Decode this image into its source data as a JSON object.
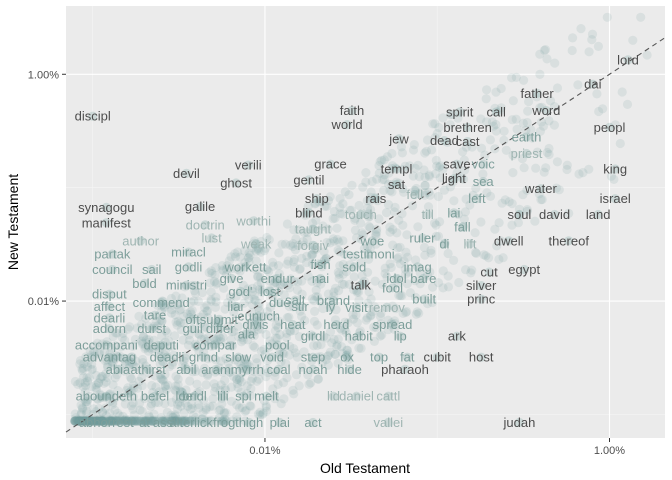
{
  "chart_data": {
    "type": "scatter",
    "title": "",
    "xlabel": "Old Testament",
    "ylabel": "New Testament",
    "x_scale": "log10",
    "y_scale": "log10",
    "x_ticks": [
      {
        "value": 0.01,
        "label": "0.01%"
      },
      {
        "value": 1,
        "label": "1.00%"
      }
    ],
    "y_ticks": [
      {
        "value": 0.01,
        "label": "0.01%"
      },
      {
        "value": 1,
        "label": "1.00%"
      }
    ],
    "xlim": [
      0.0007,
      2.1
    ],
    "ylim": [
      0.00062,
      4.0
    ],
    "grid": true,
    "reference_line": {
      "style": "dashed",
      "slope": 1,
      "intercept": 0
    },
    "point_color": "#6f9f9a",
    "label_colors": {
      "dark": "#4d4d4d",
      "mid": "#7d9e9a",
      "light": "#9fb5b2"
    },
    "words": [
      {
        "word": "lord",
        "x": 1.28,
        "y": 1.34,
        "tone": "dark"
      },
      {
        "word": "dai",
        "x": 0.8,
        "y": 0.817,
        "tone": "dark"
      },
      {
        "word": "father",
        "x": 0.38,
        "y": 0.68,
        "tone": "dark"
      },
      {
        "word": "call",
        "x": 0.22,
        "y": 0.465,
        "tone": "dark"
      },
      {
        "word": "word",
        "x": 0.43,
        "y": 0.478,
        "tone": "dark"
      },
      {
        "word": "spirit",
        "x": 0.135,
        "y": 0.465,
        "tone": "dark"
      },
      {
        "word": "faith",
        "x": 0.032,
        "y": 0.478,
        "tone": "dark"
      },
      {
        "word": "world",
        "x": 0.03,
        "y": 0.36,
        "tone": "dark"
      },
      {
        "word": "discipl",
        "x": 0.001,
        "y": 0.427,
        "tone": "dark"
      },
      {
        "word": "peopl",
        "x": 1.0,
        "y": 0.34,
        "tone": "dark"
      },
      {
        "word": "brethren",
        "x": 0.15,
        "y": 0.34,
        "tone": "dark"
      },
      {
        "word": "jew",
        "x": 0.06,
        "y": 0.27,
        "tone": "dark"
      },
      {
        "word": "dead",
        "x": 0.11,
        "y": 0.26,
        "tone": "dark"
      },
      {
        "word": "cast",
        "x": 0.15,
        "y": 0.255,
        "tone": "dark"
      },
      {
        "word": "earth",
        "x": 0.33,
        "y": 0.28,
        "tone": "mid"
      },
      {
        "word": "priest",
        "x": 0.33,
        "y": 0.2,
        "tone": "light"
      },
      {
        "word": "king",
        "x": 1.08,
        "y": 0.146,
        "tone": "dark"
      },
      {
        "word": "grace",
        "x": 0.024,
        "y": 0.161,
        "tone": "dark"
      },
      {
        "word": "verili",
        "x": 0.008,
        "y": 0.158,
        "tone": "dark"
      },
      {
        "word": "devil",
        "x": 0.0035,
        "y": 0.134,
        "tone": "dark"
      },
      {
        "word": "templ",
        "x": 0.058,
        "y": 0.146,
        "tone": "dark"
      },
      {
        "word": "save",
        "x": 0.13,
        "y": 0.161,
        "tone": "dark"
      },
      {
        "word": "voic",
        "x": 0.185,
        "y": 0.161,
        "tone": "mid"
      },
      {
        "word": "ghost",
        "x": 0.0068,
        "y": 0.11,
        "tone": "dark"
      },
      {
        "word": "gentil",
        "x": 0.018,
        "y": 0.117,
        "tone": "dark"
      },
      {
        "word": "sat",
        "x": 0.058,
        "y": 0.107,
        "tone": "dark"
      },
      {
        "word": "light",
        "x": 0.125,
        "y": 0.12,
        "tone": "dark"
      },
      {
        "word": "sea",
        "x": 0.185,
        "y": 0.113,
        "tone": "mid"
      },
      {
        "word": "water",
        "x": 0.4,
        "y": 0.098,
        "tone": "dark"
      },
      {
        "word": "galile",
        "x": 0.0042,
        "y": 0.068,
        "tone": "dark"
      },
      {
        "word": "ship",
        "x": 0.02,
        "y": 0.08,
        "tone": "dark"
      },
      {
        "word": "rais",
        "x": 0.044,
        "y": 0.08,
        "tone": "dark"
      },
      {
        "word": "fell",
        "x": 0.074,
        "y": 0.087,
        "tone": "light"
      },
      {
        "word": "left",
        "x": 0.17,
        "y": 0.08,
        "tone": "mid"
      },
      {
        "word": "israel",
        "x": 1.08,
        "y": 0.08,
        "tone": "dark"
      },
      {
        "word": "synagogu",
        "x": 0.0012,
        "y": 0.067,
        "tone": "dark"
      },
      {
        "word": "blind",
        "x": 0.018,
        "y": 0.06,
        "tone": "dark"
      },
      {
        "word": "touch",
        "x": 0.036,
        "y": 0.058,
        "tone": "light"
      },
      {
        "word": "till",
        "x": 0.088,
        "y": 0.058,
        "tone": "light"
      },
      {
        "word": "lai",
        "x": 0.125,
        "y": 0.06,
        "tone": "mid"
      },
      {
        "word": "soul",
        "x": 0.3,
        "y": 0.058,
        "tone": "dark"
      },
      {
        "word": "david",
        "x": 0.48,
        "y": 0.058,
        "tone": "dark"
      },
      {
        "word": "land",
        "x": 0.86,
        "y": 0.058,
        "tone": "dark"
      },
      {
        "word": "manifest",
        "x": 0.0012,
        "y": 0.049,
        "tone": "dark"
      },
      {
        "word": "doctrin",
        "x": 0.0045,
        "y": 0.047,
        "tone": "light"
      },
      {
        "word": "worthi",
        "x": 0.0086,
        "y": 0.051,
        "tone": "light"
      },
      {
        "word": "taught",
        "x": 0.019,
        "y": 0.043,
        "tone": "light"
      },
      {
        "word": "fall",
        "x": 0.14,
        "y": 0.045,
        "tone": "mid"
      },
      {
        "word": "author",
        "x": 0.0019,
        "y": 0.034,
        "tone": "light"
      },
      {
        "word": "lust",
        "x": 0.0049,
        "y": 0.036,
        "tone": "light"
      },
      {
        "word": "weak",
        "x": 0.0089,
        "y": 0.032,
        "tone": "light"
      },
      {
        "word": "forgiv",
        "x": 0.019,
        "y": 0.031,
        "tone": "light"
      },
      {
        "word": "woe",
        "x": 0.042,
        "y": 0.034,
        "tone": "mid"
      },
      {
        "word": "ruler",
        "x": 0.082,
        "y": 0.036,
        "tone": "mid"
      },
      {
        "word": "di",
        "x": 0.11,
        "y": 0.032,
        "tone": "mid"
      },
      {
        "word": "lift",
        "x": 0.155,
        "y": 0.032,
        "tone": "light"
      },
      {
        "word": "dwell",
        "x": 0.26,
        "y": 0.034,
        "tone": "dark"
      },
      {
        "word": "thereof",
        "x": 0.58,
        "y": 0.034,
        "tone": "dark"
      },
      {
        "word": "partak",
        "x": 0.0013,
        "y": 0.026,
        "tone": "mid"
      },
      {
        "word": "miracl",
        "x": 0.0036,
        "y": 0.027,
        "tone": "mid"
      },
      {
        "word": "testimoni",
        "x": 0.04,
        "y": 0.026,
        "tone": "mid"
      },
      {
        "word": "council",
        "x": 0.0013,
        "y": 0.019,
        "tone": "mid"
      },
      {
        "word": "sail",
        "x": 0.0022,
        "y": 0.019,
        "tone": "mid"
      },
      {
        "word": "godli",
        "x": 0.0036,
        "y": 0.02,
        "tone": "mid"
      },
      {
        "word": "workett",
        "x": 0.0077,
        "y": 0.02,
        "tone": "mid"
      },
      {
        "word": "fish",
        "x": 0.021,
        "y": 0.021,
        "tone": "mid"
      },
      {
        "word": "sold",
        "x": 0.033,
        "y": 0.02,
        "tone": "mid"
      },
      {
        "word": "imag",
        "x": 0.077,
        "y": 0.02,
        "tone": "mid"
      },
      {
        "word": "cut",
        "x": 0.2,
        "y": 0.018,
        "tone": "dark"
      },
      {
        "word": "egypt",
        "x": 0.32,
        "y": 0.019,
        "tone": "dark"
      },
      {
        "word": "bold",
        "x": 0.002,
        "y": 0.0143,
        "tone": "mid"
      },
      {
        "word": "ministri",
        "x": 0.0035,
        "y": 0.0138,
        "tone": "mid"
      },
      {
        "word": "give",
        "x": 0.0064,
        "y": 0.0158,
        "tone": "mid"
      },
      {
        "word": "endur",
        "x": 0.0118,
        "y": 0.0158,
        "tone": "mid"
      },
      {
        "word": "nai",
        "x": 0.021,
        "y": 0.0158,
        "tone": "mid"
      },
      {
        "word": "talk",
        "x": 0.036,
        "y": 0.0138,
        "tone": "dark"
      },
      {
        "word": "idol",
        "x": 0.058,
        "y": 0.0158,
        "tone": "mid"
      },
      {
        "word": "bare",
        "x": 0.083,
        "y": 0.0158,
        "tone": "mid"
      },
      {
        "word": "fool",
        "x": 0.055,
        "y": 0.0131,
        "tone": "mid"
      },
      {
        "word": "silver",
        "x": 0.18,
        "y": 0.0137,
        "tone": "dark"
      },
      {
        "word": "disput",
        "x": 0.00125,
        "y": 0.0115,
        "tone": "mid"
      },
      {
        "word": "god'",
        "x": 0.0072,
        "y": 0.0122,
        "tone": "mid"
      },
      {
        "word": "lost",
        "x": 0.0107,
        "y": 0.0122,
        "tone": "mid"
      },
      {
        "word": "built",
        "x": 0.084,
        "y": 0.0104,
        "tone": "mid"
      },
      {
        "word": "princ",
        "x": 0.18,
        "y": 0.0104,
        "tone": "dark"
      },
      {
        "word": "affect",
        "x": 0.00125,
        "y": 0.009,
        "tone": "mid"
      },
      {
        "word": "commend",
        "x": 0.0025,
        "y": 0.0097,
        "tone": "mid"
      },
      {
        "word": "liar",
        "x": 0.0068,
        "y": 0.009,
        "tone": "mid"
      },
      {
        "word": "due",
        "x": 0.0122,
        "y": 0.0097,
        "tone": "mid"
      },
      {
        "word": "salt",
        "x": 0.015,
        "y": 0.0102,
        "tone": "mid"
      },
      {
        "word": "brand",
        "x": 0.025,
        "y": 0.0101,
        "tone": "mid"
      },
      {
        "word": "stir",
        "x": 0.016,
        "y": 0.009,
        "tone": "mid"
      },
      {
        "word": "ly",
        "x": 0.024,
        "y": 0.0088,
        "tone": "mid"
      },
      {
        "word": "visit",
        "x": 0.034,
        "y": 0.0088,
        "tone": "mid"
      },
      {
        "word": "remov",
        "x": 0.051,
        "y": 0.0088,
        "tone": "light"
      },
      {
        "word": "dearli",
        "x": 0.00125,
        "y": 0.0071,
        "tone": "mid"
      },
      {
        "word": "tare",
        "x": 0.0023,
        "y": 0.0075,
        "tone": "mid"
      },
      {
        "word": "oft",
        "x": 0.0038,
        "y": 0.0069,
        "tone": "mid"
      },
      {
        "word": "submit",
        "x": 0.0054,
        "y": 0.0069,
        "tone": "mid"
      },
      {
        "word": "eunuch",
        "x": 0.0092,
        "y": 0.0074,
        "tone": "mid"
      },
      {
        "word": "adorn",
        "x": 0.00125,
        "y": 0.0057,
        "tone": "mid"
      },
      {
        "word": "durst",
        "x": 0.0022,
        "y": 0.0057,
        "tone": "mid"
      },
      {
        "word": "guil",
        "x": 0.0038,
        "y": 0.0057,
        "tone": "mid"
      },
      {
        "word": "differ",
        "x": 0.0055,
        "y": 0.0057,
        "tone": "mid"
      },
      {
        "word": "divis",
        "x": 0.0088,
        "y": 0.0062,
        "tone": "mid"
      },
      {
        "word": "heat",
        "x": 0.0145,
        "y": 0.0062,
        "tone": "mid"
      },
      {
        "word": "herd",
        "x": 0.026,
        "y": 0.0062,
        "tone": "mid"
      },
      {
        "word": "spread",
        "x": 0.055,
        "y": 0.0062,
        "tone": "mid"
      },
      {
        "word": "ala",
        "x": 0.0078,
        "y": 0.0051,
        "tone": "mid"
      },
      {
        "word": "girdl",
        "x": 0.019,
        "y": 0.0049,
        "tone": "mid"
      },
      {
        "word": "habit",
        "x": 0.035,
        "y": 0.0049,
        "tone": "mid"
      },
      {
        "word": "lip",
        "x": 0.061,
        "y": 0.0049,
        "tone": "mid"
      },
      {
        "word": "ark",
        "x": 0.13,
        "y": 0.0049,
        "tone": "dark"
      },
      {
        "word": "accompani",
        "x": 0.0012,
        "y": 0.0041,
        "tone": "mid"
      },
      {
        "word": "deputi",
        "x": 0.0025,
        "y": 0.0041,
        "tone": "mid"
      },
      {
        "word": "compar",
        "x": 0.0051,
        "y": 0.0041,
        "tone": "mid"
      },
      {
        "word": "pool",
        "x": 0.0118,
        "y": 0.0041,
        "tone": "mid"
      },
      {
        "word": "advantag",
        "x": 0.00125,
        "y": 0.0032,
        "tone": "mid"
      },
      {
        "word": "deadli",
        "x": 0.0027,
        "y": 0.0032,
        "tone": "mid"
      },
      {
        "word": "grind",
        "x": 0.0044,
        "y": 0.0032,
        "tone": "mid"
      },
      {
        "word": "slow",
        "x": 0.007,
        "y": 0.0032,
        "tone": "mid"
      },
      {
        "word": "void",
        "x": 0.011,
        "y": 0.0032,
        "tone": "mid"
      },
      {
        "word": "step",
        "x": 0.019,
        "y": 0.0032,
        "tone": "mid"
      },
      {
        "word": "ox",
        "x": 0.03,
        "y": 0.0032,
        "tone": "mid"
      },
      {
        "word": "top",
        "x": 0.046,
        "y": 0.0032,
        "tone": "mid"
      },
      {
        "word": "fat",
        "x": 0.067,
        "y": 0.0032,
        "tone": "mid"
      },
      {
        "word": "cubit",
        "x": 0.1,
        "y": 0.0032,
        "tone": "dark"
      },
      {
        "word": "host",
        "x": 0.18,
        "y": 0.0032,
        "tone": "dark"
      },
      {
        "word": "abia",
        "x": 0.0014,
        "y": 0.0025,
        "tone": "mid"
      },
      {
        "word": "athirst",
        "x": 0.0021,
        "y": 0.0025,
        "tone": "mid"
      },
      {
        "word": "abil",
        "x": 0.0035,
        "y": 0.0025,
        "tone": "mid"
      },
      {
        "word": "aram",
        "x": 0.0052,
        "y": 0.0025,
        "tone": "mid"
      },
      {
        "word": "myrrh",
        "x": 0.0079,
        "y": 0.0025,
        "tone": "mid"
      },
      {
        "word": "coal",
        "x": 0.012,
        "y": 0.0025,
        "tone": "mid"
      },
      {
        "word": "noah",
        "x": 0.019,
        "y": 0.0025,
        "tone": "mid"
      },
      {
        "word": "hide",
        "x": 0.031,
        "y": 0.0025,
        "tone": "mid"
      },
      {
        "word": "pharaoh",
        "x": 0.065,
        "y": 0.0025,
        "tone": "dark"
      },
      {
        "word": "aboundeth",
        "x": 0.0012,
        "y": 0.00145,
        "tone": "mid"
      },
      {
        "word": "befel",
        "x": 0.0023,
        "y": 0.00145,
        "tone": "mid"
      },
      {
        "word": "loe",
        "x": 0.0034,
        "y": 0.00145,
        "tone": "mid"
      },
      {
        "word": "bridl",
        "x": 0.0039,
        "y": 0.00145,
        "tone": "mid"
      },
      {
        "word": "lili",
        "x": 0.0057,
        "y": 0.00145,
        "tone": "mid"
      },
      {
        "word": "spi",
        "x": 0.0075,
        "y": 0.00145,
        "tone": "mid"
      },
      {
        "word": "melt",
        "x": 0.0102,
        "y": 0.00145,
        "tone": "mid"
      },
      {
        "word": "lid",
        "x": 0.025,
        "y": 0.00145,
        "tone": "light"
      },
      {
        "word": "daniel",
        "x": 0.034,
        "y": 0.00145,
        "tone": "light"
      },
      {
        "word": "cattl",
        "x": 0.052,
        "y": 0.00145,
        "tone": "light"
      },
      {
        "word": "abhorrest",
        "x": 0.0012,
        "y": 0.00085,
        "tone": "mid"
      },
      {
        "word": "at",
        "x": 0.002,
        "y": 0.00085,
        "tone": "mid"
      },
      {
        "word": "ass'",
        "x": 0.0026,
        "y": 0.00085,
        "tone": "mid"
      },
      {
        "word": "alter",
        "x": 0.0033,
        "y": 0.00085,
        "tone": "mid"
      },
      {
        "word": "lick",
        "x": 0.0044,
        "y": 0.00085,
        "tone": "mid"
      },
      {
        "word": "frog",
        "x": 0.0058,
        "y": 0.00085,
        "tone": "mid"
      },
      {
        "word": "thigh",
        "x": 0.0081,
        "y": 0.00085,
        "tone": "mid"
      },
      {
        "word": "plai",
        "x": 0.0122,
        "y": 0.00085,
        "tone": "mid"
      },
      {
        "word": "act",
        "x": 0.019,
        "y": 0.00085,
        "tone": "mid"
      },
      {
        "word": "vallei",
        "x": 0.052,
        "y": 0.00085,
        "tone": "light"
      },
      {
        "word": "judah",
        "x": 0.3,
        "y": 0.00085,
        "tone": "dark"
      }
    ]
  }
}
